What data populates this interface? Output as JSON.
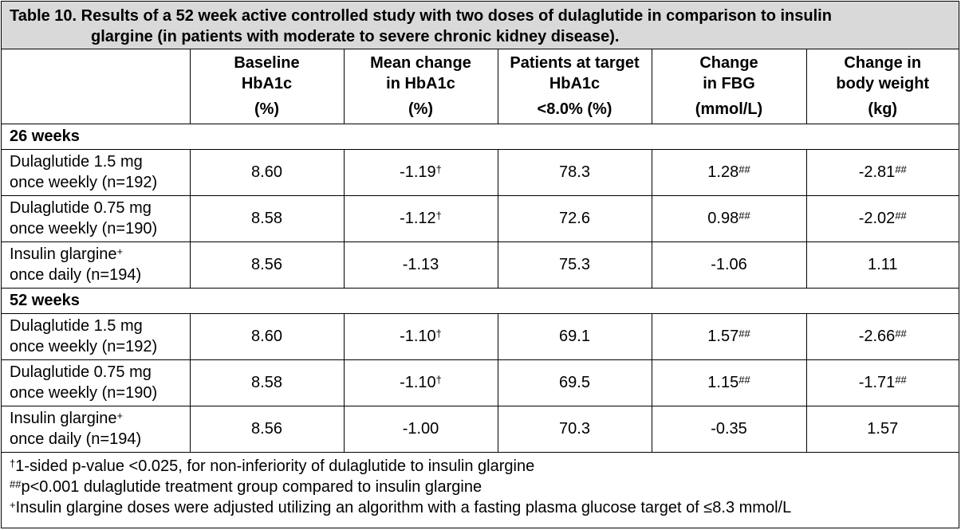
{
  "title": {
    "line1": "Table 10. Results of a 52 week active controlled study with two doses of dulaglutide in comparison to insulin",
    "line2": "glargine (in patients with moderate to severe chronic kidney disease)."
  },
  "headers": [
    {
      "l1": "Baseline",
      "l2": "HbA1c",
      "unit": "(%)"
    },
    {
      "l1": "Mean change",
      "l2": "in HbA1c",
      "unit": "(%)"
    },
    {
      "l1": "Patients at target",
      "l2": "HbA1c",
      "unit": "<8.0% (%)"
    },
    {
      "l1": "Change",
      "l2": "in FBG",
      "unit": "(mmol/L)"
    },
    {
      "l1": "Change in",
      "l2": "body weight",
      "unit": "(kg)"
    }
  ],
  "sections": [
    {
      "label": "26 weeks",
      "rows": [
        {
          "l1": "Dulaglutide 1.5 mg",
          "l2": "once weekly (n=192)",
          "l1_sup": "",
          "cells": [
            {
              "v": "8.60",
              "s": ""
            },
            {
              "v": "-1.19",
              "s": "†"
            },
            {
              "v": "78.3",
              "s": ""
            },
            {
              "v": "1.28",
              "s": "##"
            },
            {
              "v": "-2.81",
              "s": "##"
            }
          ]
        },
        {
          "l1": "Dulaglutide 0.75 mg",
          "l2": "once weekly (n=190)",
          "l1_sup": "",
          "cells": [
            {
              "v": "8.58",
              "s": ""
            },
            {
              "v": "-1.12",
              "s": "†"
            },
            {
              "v": "72.6",
              "s": ""
            },
            {
              "v": "0.98",
              "s": "##"
            },
            {
              "v": "-2.02",
              "s": "##"
            }
          ]
        },
        {
          "l1": "Insulin glargine",
          "l2": "once daily (n=194)",
          "l1_sup": "+",
          "cells": [
            {
              "v": "8.56",
              "s": ""
            },
            {
              "v": "-1.13",
              "s": ""
            },
            {
              "v": "75.3",
              "s": ""
            },
            {
              "v": "-1.06",
              "s": ""
            },
            {
              "v": "1.11",
              "s": ""
            }
          ]
        }
      ]
    },
    {
      "label": "52 weeks",
      "rows": [
        {
          "l1": "Dulaglutide 1.5 mg",
          "l2": "once weekly (n=192)",
          "l1_sup": "",
          "cells": [
            {
              "v": "8.60",
              "s": ""
            },
            {
              "v": "-1.10",
              "s": "†"
            },
            {
              "v": "69.1",
              "s": ""
            },
            {
              "v": "1.57",
              "s": "##"
            },
            {
              "v": "-2.66",
              "s": "##"
            }
          ]
        },
        {
          "l1": "Dulaglutide 0.75 mg",
          "l2": "once weekly (n=190)",
          "l1_sup": "",
          "cells": [
            {
              "v": "8.58",
              "s": ""
            },
            {
              "v": "-1.10",
              "s": "†"
            },
            {
              "v": "69.5",
              "s": ""
            },
            {
              "v": "1.15",
              "s": "##"
            },
            {
              "v": "-1.71",
              "s": "##"
            }
          ]
        },
        {
          "l1": "Insulin glargine",
          "l2": "once daily (n=194)",
          "l1_sup": "+",
          "cells": [
            {
              "v": "8.56",
              "s": ""
            },
            {
              "v": "-1.00",
              "s": ""
            },
            {
              "v": "70.3",
              "s": ""
            },
            {
              "v": "-0.35",
              "s": ""
            },
            {
              "v": "1.57",
              "s": ""
            }
          ]
        }
      ]
    }
  ],
  "footnotes": [
    {
      "mark": "†",
      "text": "1-sided p-value <0.025, for non-inferiority of dulaglutide to insulin glargine"
    },
    {
      "mark": "##",
      "text": "p<0.001 dulaglutide treatment group compared to insulin glargine"
    },
    {
      "mark": "+",
      "text": "Insulin glargine doses were adjusted utilizing an algorithm with a fasting plasma glucose target of ≤8.3 mmol/L"
    }
  ]
}
